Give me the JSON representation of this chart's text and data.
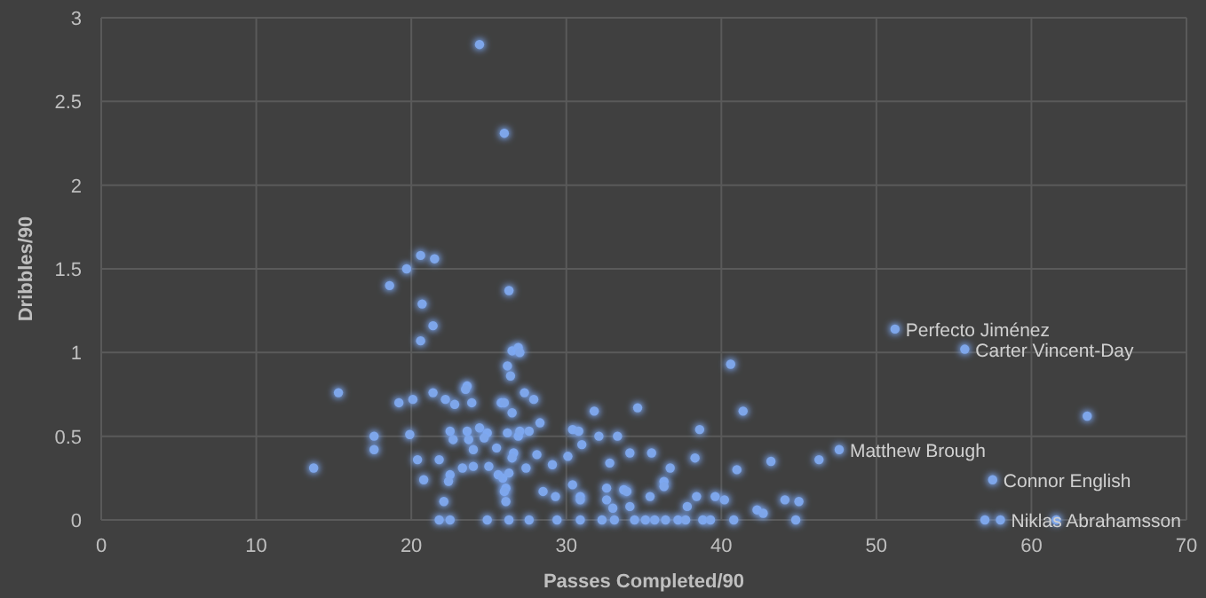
{
  "chart_data": {
    "type": "scatter",
    "xlabel": "Passes Completed/90",
    "ylabel": "Dribbles/90",
    "xlim": [
      0,
      70
    ],
    "xticks": [
      0,
      10,
      20,
      30,
      40,
      50,
      60,
      70
    ],
    "ylim": [
      0,
      3
    ],
    "yticks": [
      0,
      0.5,
      1,
      1.5,
      2,
      2.5,
      3
    ],
    "grid": true,
    "marker": "circle",
    "series": [
      {
        "color": "#7ea6ea",
        "x": [
          24.4,
          26.0,
          20.6,
          21.5,
          19.7,
          18.6,
          26.3,
          20.7,
          21.4,
          20.6,
          26.5,
          26.9,
          27.0,
          26.2,
          26.4,
          15.3,
          19.2,
          20.1,
          21.4,
          22.2,
          22.8,
          23.6,
          23.5,
          23.9,
          25.8,
          26.0,
          26.5,
          27.3,
          27.9,
          31.8,
          17.6,
          17.6,
          19.9,
          22.5,
          22.7,
          23.6,
          23.7,
          24.0,
          24.4,
          24.9,
          24.7,
          25.5,
          26.2,
          26.9,
          27.0,
          27.6,
          28.3,
          26.6,
          26.5,
          28.1,
          30.1,
          30.4,
          30.8,
          31.0,
          32.1,
          13.7,
          20.4,
          21.8,
          20.8,
          22.5,
          22.4,
          23.3,
          24.0,
          25.0,
          25.6,
          25.9,
          26.3,
          27.4,
          29.1,
          26.1,
          26.0,
          28.5,
          29.3,
          30.4,
          30.9,
          30.9,
          22.1,
          26.1,
          21.8,
          22.5,
          24.9,
          26.3,
          27.6,
          29.4,
          30.9,
          32.3,
          51.2,
          40.6,
          41.4,
          34.6,
          38.6,
          33.3,
          34.1,
          35.5,
          38.3,
          32.8,
          36.7,
          41.0,
          43.2,
          46.3,
          47.6,
          32.6,
          33.7,
          33.9,
          36.3,
          36.3,
          32.6,
          33.0,
          34.1,
          35.4,
          37.8,
          38.4,
          39.6,
          40.2,
          42.3,
          42.7,
          44.1,
          45.0,
          33.1,
          34.4,
          35.1,
          35.7,
          36.4,
          37.2,
          37.7,
          38.8,
          39.3,
          40.8,
          44.8,
          55.7,
          63.6,
          57.5,
          57.0,
          58.0,
          61.6
        ],
        "values": [
          2.84,
          2.31,
          1.58,
          1.56,
          1.5,
          1.4,
          1.37,
          1.29,
          1.16,
          1.07,
          1.01,
          1.03,
          1.0,
          0.92,
          0.86,
          0.76,
          0.7,
          0.72,
          0.76,
          0.72,
          0.69,
          0.8,
          0.78,
          0.7,
          0.7,
          0.7,
          0.64,
          0.76,
          0.72,
          0.65,
          0.5,
          0.42,
          0.51,
          0.53,
          0.48,
          0.53,
          0.48,
          0.42,
          0.55,
          0.52,
          0.49,
          0.43,
          0.52,
          0.5,
          0.53,
          0.53,
          0.58,
          0.4,
          0.37,
          0.39,
          0.38,
          0.54,
          0.53,
          0.45,
          0.5,
          0.31,
          0.36,
          0.36,
          0.24,
          0.27,
          0.23,
          0.31,
          0.32,
          0.32,
          0.27,
          0.25,
          0.28,
          0.31,
          0.33,
          0.19,
          0.17,
          0.17,
          0.14,
          0.21,
          0.14,
          0.12,
          0.11,
          0.11,
          0,
          0,
          0,
          0,
          0,
          0,
          0,
          0,
          1.14,
          0.93,
          0.65,
          0.67,
          0.54,
          0.5,
          0.4,
          0.4,
          0.37,
          0.34,
          0.31,
          0.3,
          0.35,
          0.36,
          0.42,
          0.19,
          0.18,
          0.17,
          0.23,
          0.2,
          0.12,
          0.07,
          0.08,
          0.14,
          0.08,
          0.14,
          0.14,
          0.12,
          0.06,
          0.04,
          0.12,
          0.11,
          0,
          0,
          0,
          0,
          0,
          0,
          0,
          0,
          0,
          0,
          0,
          1.02,
          0.62,
          0.24,
          0,
          0,
          0
        ]
      }
    ],
    "annotations": [
      {
        "text": "Perfecto Jiménez",
        "x": 51.2,
        "y": 1.14
      },
      {
        "text": "Carter Vincent-Day",
        "x": 55.7,
        "y": 1.02
      },
      {
        "text": "Matthew Brough",
        "x": 47.6,
        "y": 0.42
      },
      {
        "text": "Connor English",
        "x": 57.5,
        "y": 0.24
      },
      {
        "text": "Niklas Abrahamsson",
        "x": 58.0,
        "y": 0
      }
    ]
  }
}
